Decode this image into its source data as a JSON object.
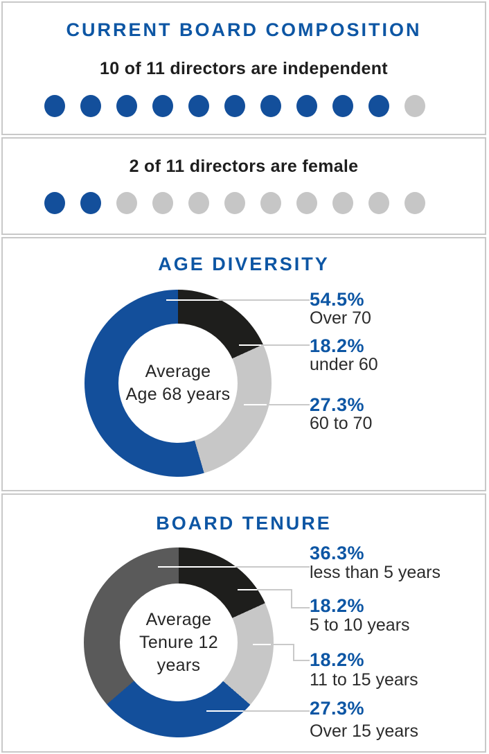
{
  "colors": {
    "accent_blue": "#0D56A4",
    "chart_blue": "#134F9B",
    "black_slice": "#1E1E1C",
    "light_gray_slice": "#C7C7C7",
    "dark_gray_slice": "#5A5A5A",
    "empty_dot_gray": "#C6C6C6",
    "leader_line_gray": "#C9C9C9",
    "frame_border_gray": "#C8C8C8"
  },
  "chart_data": [
    {
      "id": "independent-directors",
      "type": "unit-dot",
      "title": "CURRENT BOARD COMPOSITION",
      "statement": "10 of 11 directors are independent",
      "total": 11,
      "filled": 10,
      "filled_color": "#134F9B",
      "empty_color": "#C6C6C6"
    },
    {
      "id": "female-directors",
      "type": "unit-dot",
      "statement": "2 of 11 directors are female",
      "total": 11,
      "filled": 2,
      "filled_color": "#134F9B",
      "empty_color": "#C6C6C6"
    },
    {
      "id": "age-diversity",
      "type": "donut",
      "title": "AGE DIVERSITY",
      "center_lines": [
        "Average",
        "Age 68 years"
      ],
      "segments": [
        {
          "label": "Over 70",
          "pct_label": "54.5%",
          "value": 54.5,
          "color": "#134F9B"
        },
        {
          "label": "under 60",
          "pct_label": "18.2%",
          "value": 18.2,
          "color": "#1E1E1C"
        },
        {
          "label": "60 to 70",
          "pct_label": "27.3%",
          "value": 27.3,
          "color": "#C7C7C7"
        }
      ],
      "clockwise_from_top": [
        "under 60",
        "60 to 70",
        "Over 70"
      ],
      "legend_position": "right"
    },
    {
      "id": "board-tenure",
      "type": "donut",
      "title": "BOARD TENURE",
      "center_lines": [
        "Average",
        "Tenure 12 years"
      ],
      "segments": [
        {
          "label": "less than 5 years",
          "pct_label": "36.3%",
          "value": 36.3,
          "color": "#5A5A5A"
        },
        {
          "label": "5 to 10 years",
          "pct_label": "18.2%",
          "value": 18.2,
          "color": "#1E1E1C"
        },
        {
          "label": "11 to 15 years",
          "pct_label": "18.2%",
          "value": 18.2,
          "color": "#C7C7C7"
        },
        {
          "label": "Over 15 years",
          "pct_label": "27.3%",
          "value": 27.3,
          "color": "#134F9B"
        }
      ],
      "clockwise_from_top": [
        "5 to 10 years",
        "11 to 15 years",
        "Over 15 years",
        "less than 5 years"
      ],
      "legend_position": "right"
    }
  ]
}
